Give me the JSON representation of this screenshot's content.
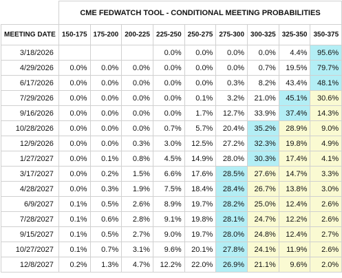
{
  "title": "CME FEDWATCH TOOL - CONDITIONAL MEETING PROBABILITIES",
  "header": {
    "meeting_date": "MEETING DATE",
    "ranges": [
      "150-175",
      "175-200",
      "200-225",
      "225-250",
      "250-275",
      "275-300",
      "300-325",
      "325-350",
      "350-375"
    ]
  },
  "colors": {
    "highest": "#b3eef5",
    "second": "#fafad2"
  },
  "rows": [
    {
      "date": "3/18/2026",
      "values": [
        "",
        "",
        "",
        "0.0%",
        "0.0%",
        "0.0%",
        "0.0%",
        "4.4%",
        "95.6%"
      ],
      "hi": 8,
      "mid": []
    },
    {
      "date": "4/29/2026",
      "values": [
        "0.0%",
        "0.0%",
        "0.0%",
        "0.0%",
        "0.0%",
        "0.0%",
        "0.7%",
        "19.5%",
        "79.7%"
      ],
      "hi": 8,
      "mid": []
    },
    {
      "date": "6/17/2026",
      "values": [
        "0.0%",
        "0.0%",
        "0.0%",
        "0.0%",
        "0.0%",
        "0.3%",
        "8.2%",
        "43.4%",
        "48.1%"
      ],
      "hi": 8,
      "mid": []
    },
    {
      "date": "7/29/2026",
      "values": [
        "0.0%",
        "0.0%",
        "0.0%",
        "0.0%",
        "0.1%",
        "3.2%",
        "21.0%",
        "45.1%",
        "30.6%"
      ],
      "hi": 7,
      "mid": [
        8
      ]
    },
    {
      "date": "9/16/2026",
      "values": [
        "0.0%",
        "0.0%",
        "0.0%",
        "0.0%",
        "1.7%",
        "12.7%",
        "33.9%",
        "37.4%",
        "14.3%"
      ],
      "hi": 7,
      "mid": [
        8
      ]
    },
    {
      "date": "10/28/2026",
      "values": [
        "0.0%",
        "0.0%",
        "0.0%",
        "0.7%",
        "5.7%",
        "20.4%",
        "35.2%",
        "28.9%",
        "9.0%"
      ],
      "hi": 6,
      "mid": [
        7,
        8
      ]
    },
    {
      "date": "12/9/2026",
      "values": [
        "0.0%",
        "0.0%",
        "0.3%",
        "3.0%",
        "12.5%",
        "27.2%",
        "32.3%",
        "19.8%",
        "4.9%"
      ],
      "hi": 6,
      "mid": [
        7,
        8
      ]
    },
    {
      "date": "1/27/2027",
      "values": [
        "0.0%",
        "0.1%",
        "0.8%",
        "4.5%",
        "14.9%",
        "28.0%",
        "30.3%",
        "17.4%",
        "4.1%"
      ],
      "hi": 6,
      "mid": [
        7,
        8
      ]
    },
    {
      "date": "3/17/2027",
      "values": [
        "0.0%",
        "0.2%",
        "1.5%",
        "6.6%",
        "17.6%",
        "28.5%",
        "27.6%",
        "14.7%",
        "3.3%"
      ],
      "hi": 5,
      "mid": [
        6,
        7,
        8
      ]
    },
    {
      "date": "4/28/2027",
      "values": [
        "0.0%",
        "0.3%",
        "1.9%",
        "7.5%",
        "18.4%",
        "28.4%",
        "26.7%",
        "13.8%",
        "3.0%"
      ],
      "hi": 5,
      "mid": [
        6,
        7,
        8
      ]
    },
    {
      "date": "6/9/2027",
      "values": [
        "0.1%",
        "0.5%",
        "2.6%",
        "8.9%",
        "19.7%",
        "28.2%",
        "25.0%",
        "12.4%",
        "2.6%"
      ],
      "hi": 5,
      "mid": [
        6,
        7,
        8
      ]
    },
    {
      "date": "7/28/2027",
      "values": [
        "0.1%",
        "0.6%",
        "2.8%",
        "9.1%",
        "19.8%",
        "28.1%",
        "24.7%",
        "12.2%",
        "2.6%"
      ],
      "hi": 5,
      "mid": [
        6,
        7,
        8
      ]
    },
    {
      "date": "9/15/2027",
      "values": [
        "0.1%",
        "0.5%",
        "2.7%",
        "9.0%",
        "19.7%",
        "28.0%",
        "24.8%",
        "12.4%",
        "2.7%"
      ],
      "hi": 5,
      "mid": [
        6,
        7,
        8
      ]
    },
    {
      "date": "10/27/2027",
      "values": [
        "0.1%",
        "0.7%",
        "3.1%",
        "9.6%",
        "20.1%",
        "27.8%",
        "24.1%",
        "11.9%",
        "2.6%"
      ],
      "hi": 5,
      "mid": [
        6,
        7,
        8
      ]
    },
    {
      "date": "12/8/2027",
      "values": [
        "0.2%",
        "1.3%",
        "4.7%",
        "12.2%",
        "22.0%",
        "26.9%",
        "21.1%",
        "9.6%",
        "2.0%"
      ],
      "hi": 5,
      "mid": [
        6,
        7,
        8
      ]
    }
  ]
}
